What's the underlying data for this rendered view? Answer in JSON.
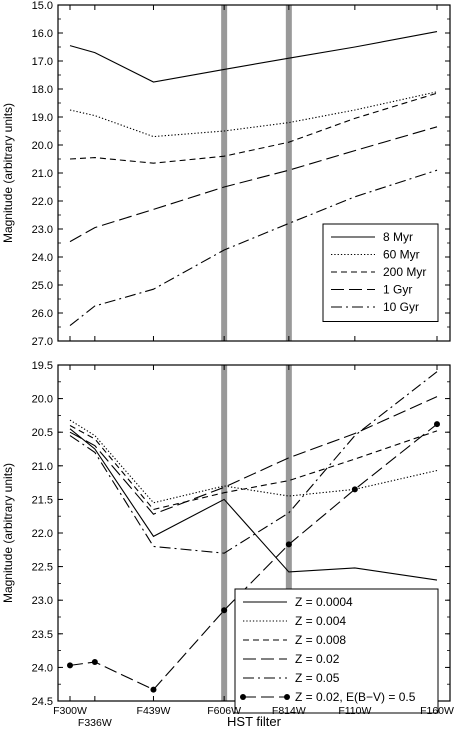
{
  "xlabel": "HST filter",
  "filters": [
    "F300W",
    "F336W",
    "F439W",
    "F606W",
    "F814W",
    "F110W",
    "F160W"
  ],
  "filter_wavelength": [
    300,
    336,
    439,
    606,
    814,
    1100,
    1600
  ],
  "highlight_filters": [
    "F606W",
    "F814W"
  ],
  "colors": {
    "highlight": "#999999",
    "line": "#000000",
    "background": "#ffffff"
  },
  "chart_data": [
    {
      "type": "line",
      "panel": "top",
      "ylabel": "Magnitude (arbitrary units)",
      "ylim": [
        15.0,
        27.0
      ],
      "y_inverted": true,
      "yticks": [
        15.0,
        16.0,
        17.0,
        18.0,
        19.0,
        20.0,
        21.0,
        22.0,
        23.0,
        24.0,
        25.0,
        26.0,
        27.0
      ],
      "x_axis_ticks_shown": false,
      "legend_placement": "bottom-right",
      "series": [
        {
          "name": "8 Myr",
          "style": "solid",
          "values": [
            16.45,
            16.7,
            17.75,
            17.3,
            16.9,
            16.5,
            15.95
          ]
        },
        {
          "name": "60 Myr",
          "style": "dotted",
          "values": [
            18.75,
            18.95,
            19.7,
            19.5,
            19.2,
            18.75,
            18.1
          ]
        },
        {
          "name": "200 Myr",
          "style": "short-dash",
          "values": [
            20.5,
            20.45,
            20.65,
            20.4,
            19.9,
            19.05,
            18.15
          ]
        },
        {
          "name": "1 Gyr",
          "style": "long-dash",
          "values": [
            23.45,
            22.95,
            22.3,
            21.5,
            20.9,
            20.2,
            19.35
          ]
        },
        {
          "name": "10 Gyr",
          "style": "dash-dot",
          "values": [
            26.45,
            25.75,
            25.15,
            23.75,
            22.8,
            21.85,
            20.9
          ]
        }
      ]
    },
    {
      "type": "line",
      "panel": "bottom",
      "ylabel": "Magnitude (arbitrary units)",
      "ylim": [
        19.5,
        24.5
      ],
      "y_inverted": true,
      "yticks": [
        19.5,
        20.0,
        20.5,
        21.0,
        21.5,
        22.0,
        22.5,
        23.0,
        23.5,
        24.0,
        24.5
      ],
      "x_axis_ticks_shown": true,
      "legend_placement": "bottom-right",
      "series": [
        {
          "name": "Z = 0.0004",
          "style": "solid",
          "values": [
            20.45,
            20.75,
            22.05,
            21.5,
            22.58,
            22.52,
            22.7
          ]
        },
        {
          "name": "Z = 0.004",
          "style": "dotted",
          "values": [
            20.32,
            20.55,
            21.55,
            21.3,
            21.45,
            21.35,
            21.07
          ]
        },
        {
          "name": "Z = 0.008",
          "style": "short-dash",
          "values": [
            20.4,
            20.6,
            21.65,
            21.4,
            21.22,
            20.9,
            20.48
          ]
        },
        {
          "name": "Z = 0.02",
          "style": "long-dash",
          "values": [
            20.5,
            20.7,
            21.72,
            21.32,
            20.88,
            20.52,
            19.97
          ]
        },
        {
          "name": "Z = 0.05",
          "style": "dash-dot",
          "values": [
            20.55,
            20.8,
            22.2,
            22.3,
            21.7,
            20.55,
            19.6
          ]
        },
        {
          "name": "Z = 0.02, E(B−V) = 0.5",
          "style": "long-dash-marker",
          "values": [
            23.97,
            23.92,
            24.33,
            23.15,
            22.17,
            21.35,
            20.38
          ]
        }
      ]
    }
  ]
}
